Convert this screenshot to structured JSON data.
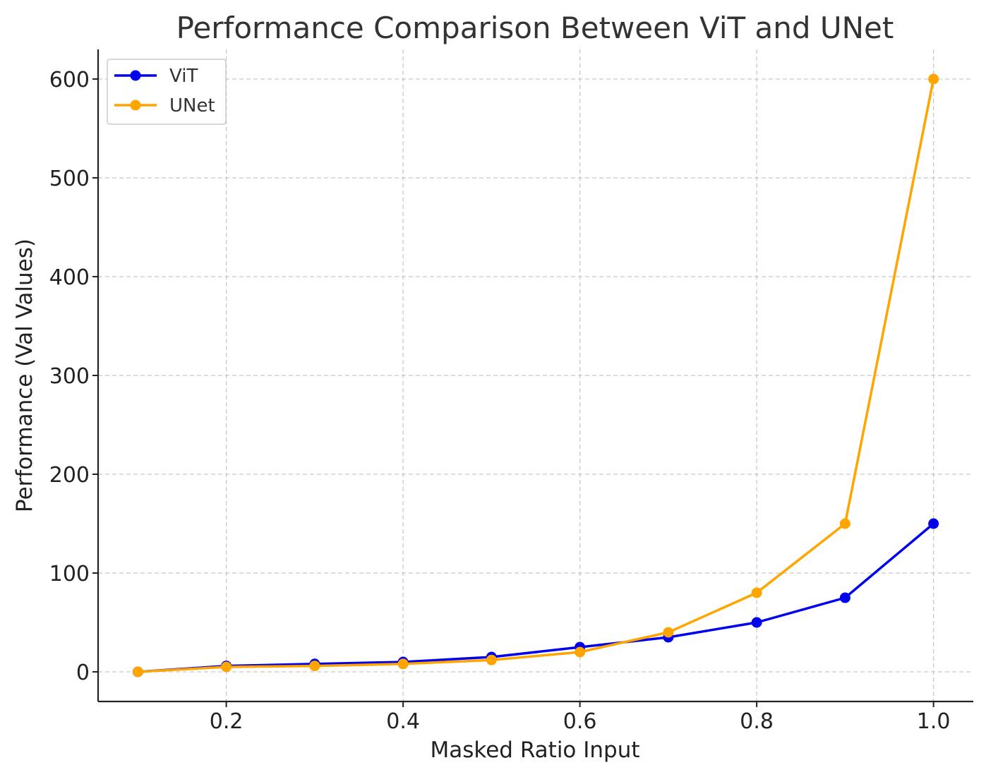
{
  "chart_data": {
    "type": "line",
    "title": "Performance Comparison Between ViT and UNet",
    "xlabel": "Masked Ratio Input",
    "ylabel": "Performance (Val Values)",
    "x": [
      0.1,
      0.2,
      0.3,
      0.4,
      0.5,
      0.6,
      0.7,
      0.8,
      0.9,
      1.0
    ],
    "xlim": [
      0.055,
      1.045
    ],
    "ylim": [
      -30,
      630
    ],
    "xticks": [
      0.2,
      0.4,
      0.6,
      0.8,
      1.0
    ],
    "xtick_labels": [
      "0.2",
      "0.4",
      "0.6",
      "0.8",
      "1.0"
    ],
    "yticks": [
      0,
      100,
      200,
      300,
      400,
      500,
      600
    ],
    "ytick_labels": [
      "0",
      "100",
      "200",
      "300",
      "400",
      "500",
      "600"
    ],
    "grid": true,
    "legend_position": "top-left",
    "series": [
      {
        "name": "ViT",
        "color": "#0000ee",
        "values": [
          0,
          6,
          8,
          10,
          15,
          25,
          35,
          50,
          75,
          150
        ]
      },
      {
        "name": "UNet",
        "color": "#ffa500",
        "values": [
          0,
          5,
          6,
          8,
          12,
          20,
          40,
          80,
          150,
          600
        ]
      }
    ]
  }
}
